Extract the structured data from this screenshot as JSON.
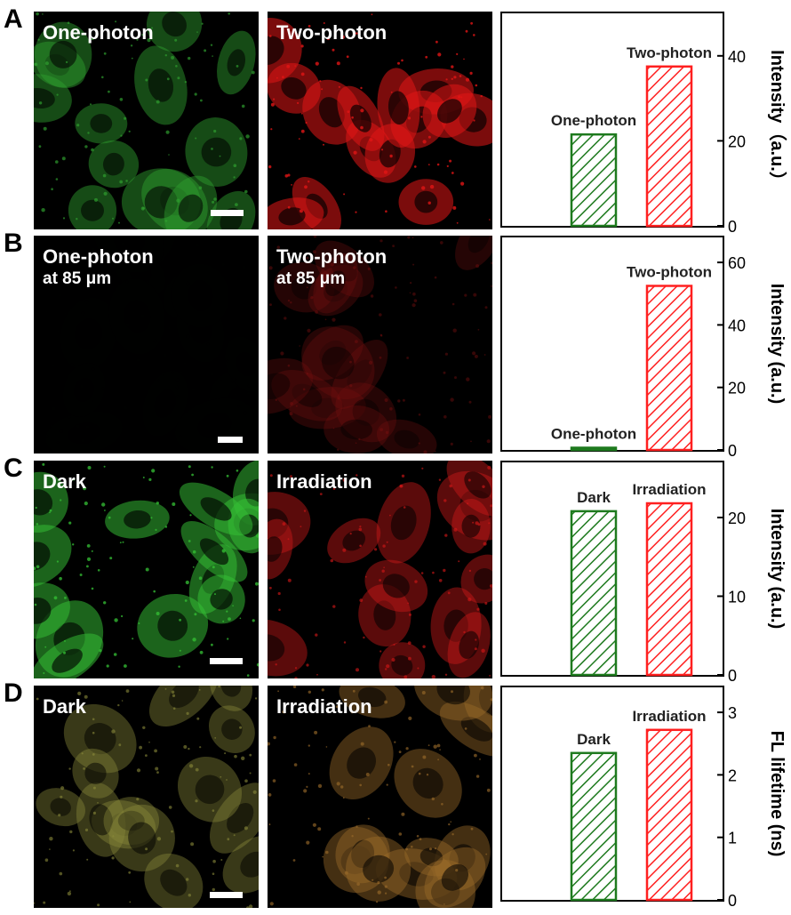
{
  "panels": [
    {
      "letter": "A",
      "left_label": "One-photon",
      "left_sublabel": "",
      "right_label": "Two-photon",
      "left_tint": "#2fa02f",
      "right_tint": "#e01515",
      "left_brightness": 0.85,
      "right_brightness": 1.0
    },
    {
      "letter": "B",
      "left_label": "One-photon",
      "left_sublabel": "at 85 μm",
      "right_label": "Two-photon",
      "right_sublabel": "at 85 μm",
      "left_tint": "#0c1a0c",
      "right_tint": "#7a1010",
      "left_brightness": 0.05,
      "right_brightness": 0.55
    },
    {
      "letter": "C",
      "left_label": "Dark",
      "left_sublabel": "",
      "right_label": "Irradiation",
      "left_tint": "#35c035",
      "right_tint": "#d01818",
      "left_brightness": 0.95,
      "right_brightness": 0.8
    },
    {
      "letter": "D",
      "left_label": "Dark",
      "left_sublabel": "",
      "right_label": "Irradiation",
      "left_tint": "#8a8a3a",
      "right_tint": "#9a6a2a",
      "left_brightness": 0.75,
      "right_brightness": 0.8
    }
  ],
  "colors": {
    "green": "#1e7a1e",
    "red": "#ff2020"
  },
  "chart_data": [
    {
      "type": "bar",
      "categories": [
        "One-photon",
        "Two-photon"
      ],
      "values": [
        21.5,
        37.5
      ],
      "ylabel": "Intensity（a.u.）",
      "ylim": [
        0,
        50
      ],
      "yticks": [
        0,
        20,
        40
      ],
      "colors": [
        "#1e7a1e",
        "#ff2020"
      ]
    },
    {
      "type": "bar",
      "categories": [
        "One-photon",
        "Two-photon"
      ],
      "values": [
        0.7,
        52.5
      ],
      "ylabel": "Intensity (a.u.)",
      "ylim": [
        0,
        68
      ],
      "yticks": [
        0,
        20,
        40,
        60
      ],
      "colors": [
        "#1e7a1e",
        "#ff2020"
      ]
    },
    {
      "type": "bar",
      "categories": [
        "Dark",
        "Irradiation"
      ],
      "values": [
        20.8,
        21.8
      ],
      "ylabel": "Intensity (a.u.)",
      "ylim": [
        0,
        27
      ],
      "yticks": [
        0,
        10,
        20
      ],
      "colors": [
        "#1e7a1e",
        "#ff2020"
      ]
    },
    {
      "type": "bar",
      "categories": [
        "Dark",
        "Irradiation"
      ],
      "values": [
        2.35,
        2.72
      ],
      "ylabel": "FL lifetime (ns)",
      "ylim": [
        0,
        3.4
      ],
      "yticks": [
        0,
        1,
        2,
        3
      ],
      "colors": [
        "#1e7a1e",
        "#ff2020"
      ]
    }
  ]
}
